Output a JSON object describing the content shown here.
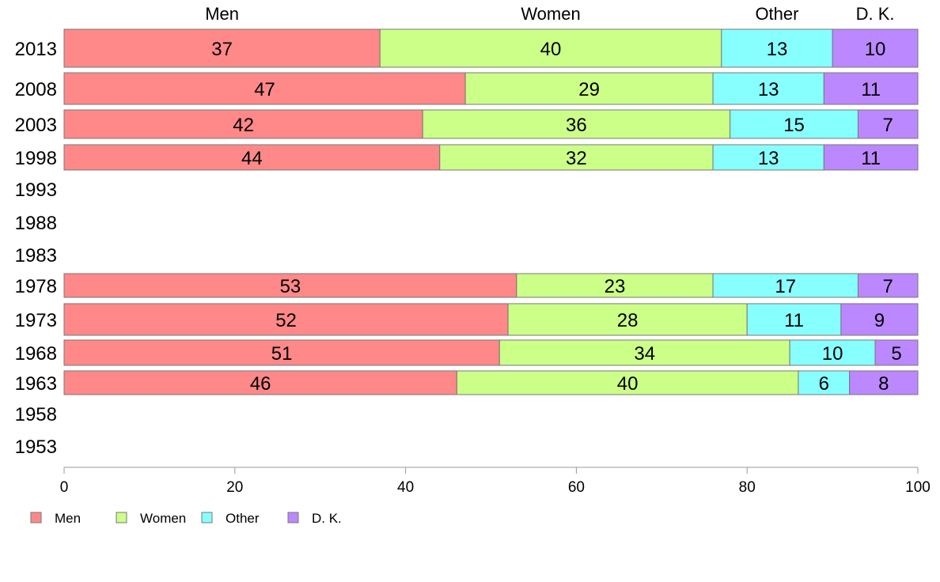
{
  "chart_data": {
    "type": "bar",
    "orientation": "horizontal",
    "stacked": true,
    "categories": [
      "2013",
      "2008",
      "2003",
      "1998",
      "1993",
      "1988",
      "1983",
      "1978",
      "1973",
      "1968",
      "1963",
      "1958",
      "1953"
    ],
    "series": [
      {
        "name": "Men",
        "values": [
          37,
          47,
          42,
          44,
          null,
          null,
          null,
          53,
          52,
          51,
          46,
          null,
          null
        ]
      },
      {
        "name": "Women",
        "values": [
          40,
          29,
          36,
          32,
          null,
          null,
          null,
          23,
          28,
          34,
          40,
          null,
          null
        ]
      },
      {
        "name": "Other",
        "values": [
          13,
          13,
          15,
          13,
          null,
          null,
          null,
          17,
          11,
          10,
          6,
          null,
          null
        ]
      },
      {
        "name": "D. K.",
        "values": [
          10,
          11,
          7,
          11,
          null,
          null,
          null,
          7,
          9,
          5,
          8,
          null,
          null
        ]
      }
    ],
    "colors": [
      "#ff8888",
      "#ccff88",
      "#88ffff",
      "#bb88ff"
    ],
    "xlim": [
      0,
      100
    ],
    "xticks": [
      0,
      20,
      40,
      60,
      80,
      100
    ],
    "header_labels": [
      "Men",
      "Women",
      "Other",
      "D. K."
    ],
    "legend": {
      "position": "bottom-left",
      "entries": [
        "Men",
        "Women",
        "Other",
        "D. K."
      ]
    },
    "grid": false
  }
}
